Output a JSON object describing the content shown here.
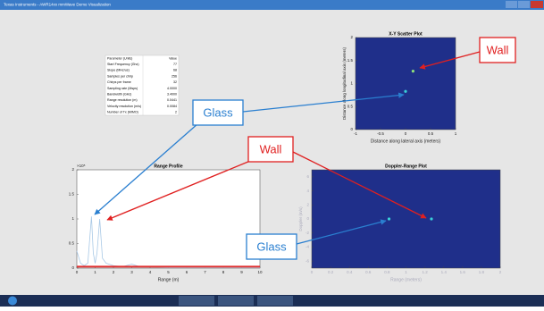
{
  "window": {
    "title": "Texas Instruments - AWR14xx mmWave Demo Visualization"
  },
  "table": {
    "header": [
      "Parameter (Units)",
      "Value"
    ],
    "rows": [
      [
        "Start Frequency (Ghz)",
        "77"
      ],
      [
        "Slope (MHz/us)",
        "68"
      ],
      [
        "Samples per chirp",
        "256"
      ],
      [
        "Chirps per frame",
        "32"
      ],
      [
        "Sampling rate (Msps)",
        "4.0000"
      ],
      [
        "Bandwidth (GHz)",
        "3.4000"
      ],
      [
        "Range resolution (m)",
        "0.0441"
      ],
      [
        "Velocity resolution (m/s)",
        "0.0084"
      ],
      [
        "Number of Tx (MIMO)",
        "2"
      ]
    ]
  },
  "annotations": [
    "Wall",
    "Glass",
    "Wall",
    "Glass"
  ],
  "chart_data": [
    {
      "type": "scatter",
      "title": "X-Y Scatter Plot",
      "xlabel": "Distance along lateral axis (meters)",
      "ylabel": "Distance along longitudinal axis (meters)",
      "x": [
        0.15,
        0
      ],
      "values": [
        1.27,
        0.83
      ],
      "colors": [
        "#8ee07a",
        "#3ad0d8"
      ],
      "background": "#1f2f8a",
      "xlim": [
        -1,
        1
      ],
      "xticks": [
        -1,
        -0.5,
        0,
        0.5,
        1
      ],
      "ylim": [
        0,
        2
      ],
      "yticks": [
        0,
        0.5,
        1,
        1.5,
        2
      ]
    },
    {
      "type": "line",
      "title": "Range Profile",
      "xlabel": "Range (m)",
      "y_multiplier": "×10⁵",
      "background": "#ffffff",
      "x": [
        0,
        0.2,
        0.4,
        0.6,
        0.8,
        0.9,
        1.0,
        1.1,
        1.25,
        1.4,
        1.6,
        2,
        2.5,
        3,
        3.5,
        4,
        5,
        6,
        7,
        8,
        9,
        10
      ],
      "series": [
        {
          "color": "#a9c9e6",
          "values": [
            0.35,
            0.1,
            0.05,
            0.1,
            1.05,
            0.3,
            0.1,
            0.3,
            1.0,
            0.2,
            0.1,
            0.05,
            0.03,
            0.08,
            0.02,
            0.02,
            0.01,
            0.01,
            0.01,
            0.01,
            0.01,
            0.01
          ]
        },
        {
          "color": "#e03030",
          "values": [
            0.03,
            0.03,
            0.03,
            0.03,
            0.03,
            0.03,
            0.03,
            0.03,
            0.03,
            0.03,
            0.03,
            0.03,
            0.03,
            0.03,
            0.03,
            0.03,
            0.03,
            0.03,
            0.03,
            0.03,
            0.03,
            0.03
          ]
        }
      ],
      "xlim": [
        0,
        10
      ],
      "xticks": [
        0,
        1,
        2,
        3,
        4,
        5,
        6,
        7,
        8,
        9,
        10
      ],
      "ylim": [
        0,
        2
      ],
      "yticks": [
        0,
        0.5,
        1,
        1.5,
        2
      ]
    },
    {
      "type": "scatter",
      "title": "Doppler-Range Plot",
      "xlabel": "Range (meters)",
      "ylabel": "Doppler (m/s)",
      "x": [
        0.82,
        1.27
      ],
      "values": [
        0,
        0
      ],
      "colors": [
        "#3ad0d8",
        "#3ad0d8"
      ],
      "background": "#1f2f8a",
      "xlim": [
        0,
        2
      ],
      "xticks": [
        0,
        0.2,
        0.4,
        0.6,
        0.8,
        1,
        1.2,
        1.4,
        1.6,
        1.8,
        2
      ],
      "ylim": [
        -7,
        7
      ],
      "yticks": [
        -6,
        -4,
        -2,
        0,
        2,
        4,
        6
      ]
    }
  ]
}
